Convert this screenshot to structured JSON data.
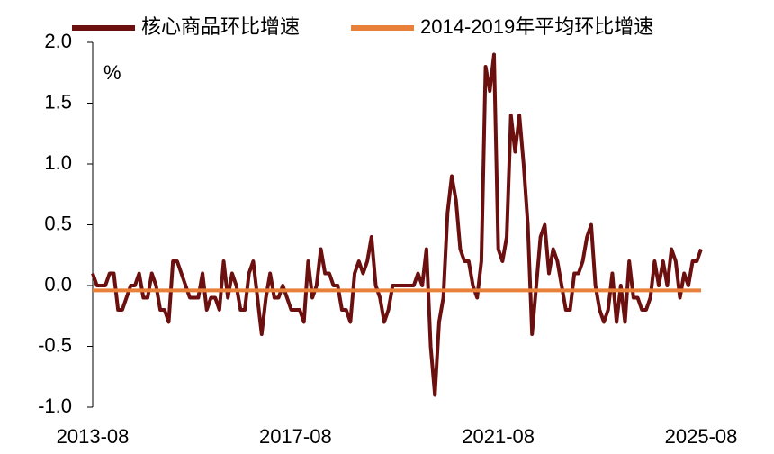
{
  "chart_data": {
    "type": "line",
    "categories": [
      "2013-08",
      null,
      null,
      null,
      null,
      null,
      null,
      null,
      null,
      null,
      null,
      null,
      null,
      null,
      null,
      null,
      null,
      null,
      null,
      null,
      null,
      null,
      null,
      null,
      null,
      null,
      null,
      null,
      null,
      null,
      null,
      null,
      null,
      null,
      null,
      null,
      null,
      null,
      null,
      null,
      null,
      null,
      null,
      null,
      null,
      null,
      null,
      null,
      "2017-08",
      null,
      null,
      null,
      null,
      null,
      null,
      null,
      null,
      null,
      null,
      null,
      null,
      null,
      null,
      null,
      null,
      null,
      null,
      null,
      null,
      null,
      null,
      null,
      null,
      null,
      null,
      null,
      null,
      null,
      null,
      null,
      null,
      null,
      null,
      null,
      null,
      null,
      null,
      null,
      null,
      null,
      null,
      null,
      null,
      null,
      null,
      null,
      "2021-08",
      null,
      null,
      null,
      null,
      null,
      null,
      null,
      null,
      null,
      null,
      null,
      null,
      null,
      null,
      null,
      null,
      null,
      null,
      null,
      null,
      null,
      null,
      null,
      null,
      null,
      null,
      null,
      null,
      null,
      null,
      null,
      null,
      null,
      null,
      null,
      null,
      null,
      null,
      null,
      null,
      null,
      null,
      null,
      null,
      null,
      null,
      null,
      "2025-08"
    ],
    "series": [
      {
        "name": "核心商品环比增速",
        "color": "#6b0f0f",
        "values": [
          0.1,
          0.0,
          0.0,
          0.0,
          0.1,
          0.1,
          -0.2,
          -0.2,
          -0.1,
          0.0,
          0.0,
          0.1,
          -0.1,
          -0.1,
          0.1,
          0.0,
          -0.2,
          -0.2,
          -0.3,
          0.2,
          0.2,
          0.1,
          0.0,
          -0.1,
          -0.1,
          -0.1,
          0.1,
          -0.2,
          -0.1,
          -0.1,
          -0.2,
          0.2,
          -0.1,
          0.1,
          0.0,
          -0.2,
          -0.2,
          0.1,
          0.2,
          -0.1,
          -0.4,
          -0.1,
          0.1,
          -0.1,
          -0.1,
          0.0,
          -0.1,
          -0.2,
          -0.2,
          -0.2,
          -0.3,
          0.2,
          -0.1,
          0.0,
          0.3,
          0.1,
          0.1,
          0.0,
          0.0,
          -0.2,
          -0.2,
          -0.3,
          0.1,
          0.2,
          0.1,
          0.2,
          0.4,
          0.0,
          -0.1,
          -0.3,
          -0.2,
          0.0,
          0.0,
          0.0,
          0.0,
          0.0,
          0.0,
          0.1,
          0.0,
          0.3,
          -0.5,
          -0.9,
          -0.3,
          -0.1,
          0.6,
          0.9,
          0.7,
          0.3,
          0.2,
          0.2,
          0.0,
          -0.1,
          0.2,
          1.8,
          1.6,
          1.9,
          0.3,
          0.2,
          0.4,
          1.4,
          1.1,
          1.4,
          1.0,
          0.5,
          -0.4,
          0.0,
          0.4,
          0.5,
          0.1,
          0.3,
          0.2,
          0.0,
          -0.2,
          -0.2,
          0.1,
          0.1,
          0.2,
          0.4,
          0.5,
          0.0,
          -0.2,
          -0.3,
          -0.2,
          0.1,
          -0.3,
          0.0,
          -0.3,
          0.2,
          -0.1,
          -0.1,
          -0.2,
          -0.2,
          -0.1,
          0.2,
          0.0,
          0.2,
          0.0,
          0.3,
          0.2,
          -0.1,
          0.1,
          0.0,
          0.2,
          0.2,
          0.3
        ]
      },
      {
        "name": "2014-2019年平均环比增速",
        "color": "#e8803a",
        "values": [
          -0.04,
          -0.04,
          -0.04,
          -0.04,
          -0.04,
          -0.04,
          -0.04,
          -0.04,
          -0.04,
          -0.04,
          -0.04,
          -0.04,
          -0.04,
          -0.04,
          -0.04,
          -0.04,
          -0.04,
          -0.04,
          -0.04,
          -0.04,
          -0.04,
          -0.04,
          -0.04,
          -0.04,
          -0.04,
          -0.04,
          -0.04,
          -0.04,
          -0.04,
          -0.04,
          -0.04,
          -0.04,
          -0.04,
          -0.04,
          -0.04,
          -0.04,
          -0.04,
          -0.04,
          -0.04,
          -0.04,
          -0.04,
          -0.04,
          -0.04,
          -0.04,
          -0.04,
          -0.04,
          -0.04,
          -0.04,
          -0.04,
          -0.04,
          -0.04,
          -0.04,
          -0.04,
          -0.04,
          -0.04,
          -0.04,
          -0.04,
          -0.04,
          -0.04,
          -0.04,
          -0.04,
          -0.04,
          -0.04,
          -0.04,
          -0.04,
          -0.04,
          -0.04,
          -0.04,
          -0.04,
          -0.04,
          -0.04,
          -0.04,
          -0.04,
          -0.04,
          -0.04,
          -0.04,
          -0.04,
          -0.04,
          -0.04,
          -0.04,
          -0.04,
          -0.04,
          -0.04,
          -0.04,
          -0.04,
          -0.04,
          -0.04,
          -0.04,
          -0.04,
          -0.04,
          -0.04,
          -0.04,
          -0.04,
          -0.04,
          -0.04,
          -0.04,
          -0.04,
          -0.04,
          -0.04,
          -0.04,
          -0.04,
          -0.04,
          -0.04,
          -0.04,
          -0.04,
          -0.04,
          -0.04,
          -0.04,
          -0.04,
          -0.04,
          -0.04,
          -0.04,
          -0.04,
          -0.04,
          -0.04,
          -0.04,
          -0.04,
          -0.04,
          -0.04,
          -0.04,
          -0.04,
          -0.04,
          -0.04,
          -0.04,
          -0.04,
          -0.04,
          -0.04,
          -0.04,
          -0.04,
          -0.04,
          -0.04,
          -0.04,
          -0.04,
          -0.04,
          -0.04,
          -0.04,
          -0.04,
          -0.04,
          -0.04,
          -0.04,
          -0.04,
          -0.04,
          -0.04,
          -0.04,
          -0.04
        ]
      }
    ],
    "y_unit": "%",
    "ylim": [
      -1.0,
      2.0
    ],
    "yticks": [
      {
        "value": 2,
        "label": "2.0"
      },
      1.5,
      {
        "value": 1,
        "label": "1.0"
      },
      0.5,
      {
        "value": 0,
        "label": "0.0"
      },
      -0.5,
      {
        "value": -1,
        "label": "-1.0"
      }
    ],
    "grid": false
  }
}
